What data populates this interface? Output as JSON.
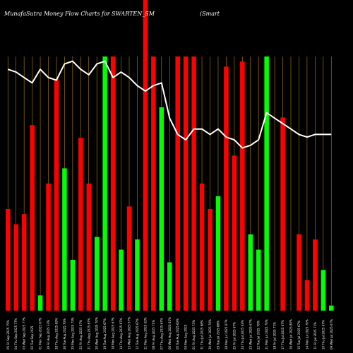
{
  "chart_data": {
    "type": "bar",
    "title": "MunafaSutra  Money Flow  Charts for SWARTEN_SM",
    "title_right": "(Smart",
    "xlabel": "",
    "ylabel": "",
    "ylim": [
      0,
      100
    ],
    "grid": true,
    "colors": {
      "background": "#000000",
      "up": "#00ff00",
      "down": "#ff0000",
      "line": "#ffffff",
      "grid": "#b8860b"
    },
    "categories": [
      "05 Fri Sep 2025 75%",
      "04 Thu Sep 2025 77%",
      "03 Wed Sep 2025 77%",
      "02 Tue Sep 2025",
      "01 Mon Sep 2025 67%",
      "29 Fri Aug 2025 33%",
      "28 Thu Aug 2025 69%",
      "26 Tue Aug 2025 70%",
      "25 Mon Aug 2025 73%",
      "22 Fri Aug 2025 67%",
      "21 Thu Aug 2025 67%",
      "20 Wed Aug 2025 70%",
      "19 Tue Aug 2025 67%",
      "18 Mon Aug 2025 67%",
      "14 Thu Aug 2025 67%",
      "13 Wed Aug 2025 57%",
      "12 Tue Aug 2025 67%",
      "11 Mon Aug 2025 62%",
      "08 Fri Aug 2025 71%",
      "07 Thu Aug 2025 67%",
      "06 Wed Aug 2025 63%",
      "05 Tue Aug 2025 63%",
      "04 Mon Aug 2025",
      "01 Fri Aug 2025 73%",
      "31 Thu Jul 2025 68%",
      "30 Wed Jul 2025 76%",
      "29 Tue Jul 2025 88%",
      "28 Mon Jul 2025 67%",
      "25 Fri Jul 2025 67%",
      "24 Thu Jul 2025 63%",
      "23 Wed Jul 2025 67%",
      "22 Tue Jul 2025 70%",
      "21 Mon Jul 2025 70%",
      "18 Fri Jul 2025 71%",
      "17 Thu Jul 2025 67%",
      "16 Wed Jul 2025 80%",
      "15 Tue Jul 2025 67%",
      "14 Mon Jul 2025 70%",
      "11 Fri Jul 2025 71%",
      "10 Thu Jul 2025 67%",
      "09 Wed Jul 2025 67%"
    ],
    "series": [
      {
        "values": [
          40,
          34,
          38,
          73,
          6,
          50,
          91,
          56,
          20,
          68,
          50,
          29,
          100,
          100,
          24,
          41,
          28,
          105,
          100,
          80,
          19,
          100,
          100,
          100,
          50,
          40,
          45,
          96,
          61,
          98,
          30,
          24,
          100,
          0,
          76,
          0,
          30,
          12,
          28,
          16,
          2
        ],
        "colors": [
          "down",
          "down",
          "down",
          "down",
          "up",
          "down",
          "down",
          "up",
          "up",
          "down",
          "down",
          "up",
          "up",
          "down",
          "up",
          "down",
          "up",
          "down",
          "down",
          "up",
          "up",
          "down",
          "down",
          "down",
          "down",
          "down",
          "up",
          "down",
          "down",
          "down",
          "up",
          "up",
          "up",
          "down",
          "down",
          "down",
          "down",
          "down",
          "down",
          "up",
          "up"
        ]
      },
      {
        "values": [
          89,
          88,
          86,
          84,
          89,
          86,
          85,
          91,
          92,
          89,
          87,
          91,
          92,
          86,
          88,
          86,
          83,
          81,
          83,
          84,
          71,
          65,
          63,
          67,
          67,
          65,
          67,
          64,
          63,
          60,
          61,
          63,
          73,
          71,
          69,
          67,
          65,
          64,
          65,
          65,
          65
        ]
      }
    ]
  }
}
